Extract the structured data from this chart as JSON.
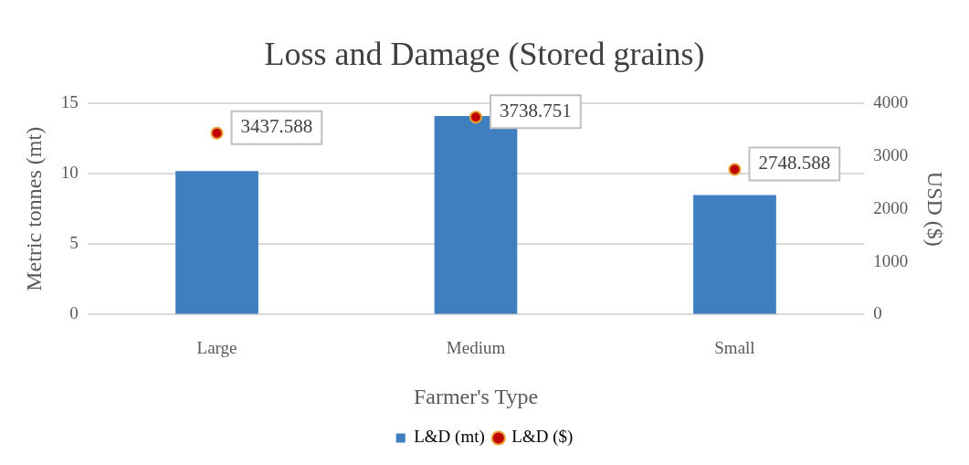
{
  "chart_data": {
    "type": "bar",
    "title": "Loss and Damage (Stored grains)",
    "xlabel": "Farmer's Type",
    "ylabel": "Metric tonnes (mt)",
    "y2label": "USD ($)",
    "categories": [
      "Large",
      "Medium",
      "Small"
    ],
    "series": [
      {
        "name": "L&D (mt)",
        "color": "#3f7fc0",
        "values": [
          10.2,
          14.1,
          8.5
        ]
      },
      {
        "name": "L&D ($)",
        "type": "scatter",
        "axis": "y2",
        "color": "#c00000",
        "values": [
          3437.588,
          3738.751,
          2748.588
        ],
        "value_labels": [
          "3437.588",
          "3738.751",
          "2748.588"
        ]
      }
    ],
    "ylim": [
      0,
      15
    ],
    "yticks": [
      0,
      5,
      10,
      15
    ],
    "y2lim": [
      0,
      4000
    ],
    "y2ticks": [
      0,
      1000,
      2000,
      3000,
      4000
    ],
    "grid": "y",
    "legend": "bottom",
    "marker": "circle"
  }
}
